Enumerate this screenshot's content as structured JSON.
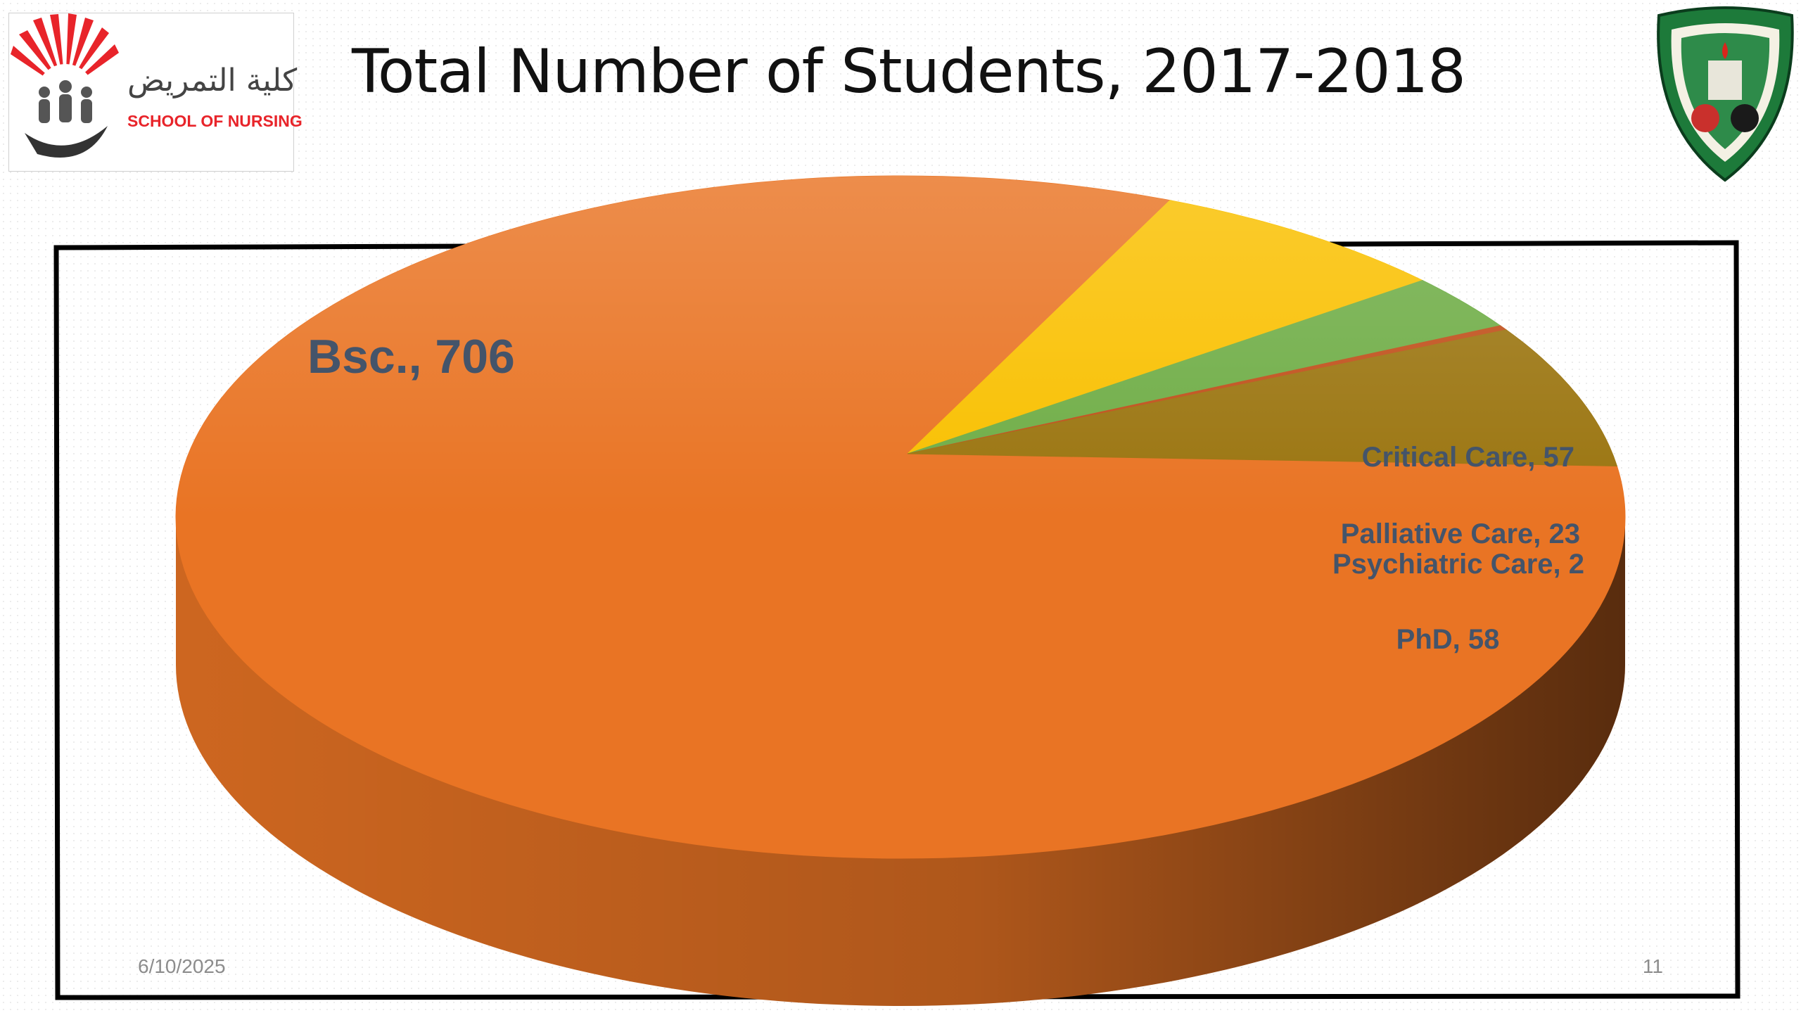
{
  "slide": {
    "title": "Total Number of Students, 2017-2018",
    "date": "6/10/2025",
    "page_number": "11"
  },
  "logo": {
    "arabic_text": "كلية التمريض",
    "english_text": "SCHOOL OF NURSING"
  },
  "colors": {
    "bsc": "#e97424",
    "critical_care": "#f9c000",
    "palliative_care": "#6fad46",
    "psychiatric_care": "#c04f1a",
    "phd": "#9b7510",
    "label_text": "#44546a",
    "frame": "#000000"
  },
  "chart_data": {
    "type": "pie",
    "title": "Total Number of Students, 2017-2018",
    "style": "3d",
    "data_labels": "category, value",
    "slices": [
      {
        "label": "Bsc.",
        "value": 706,
        "color": "#e97424"
      },
      {
        "label": "Critical Care",
        "value": 57,
        "color": "#f9c000"
      },
      {
        "label": "Palliative Care",
        "value": 23,
        "color": "#6fad46"
      },
      {
        "label": "Psychiatric Care",
        "value": 2,
        "color": "#c04f1a"
      },
      {
        "label": "PhD",
        "value": 58,
        "color": "#9b7510"
      }
    ]
  }
}
